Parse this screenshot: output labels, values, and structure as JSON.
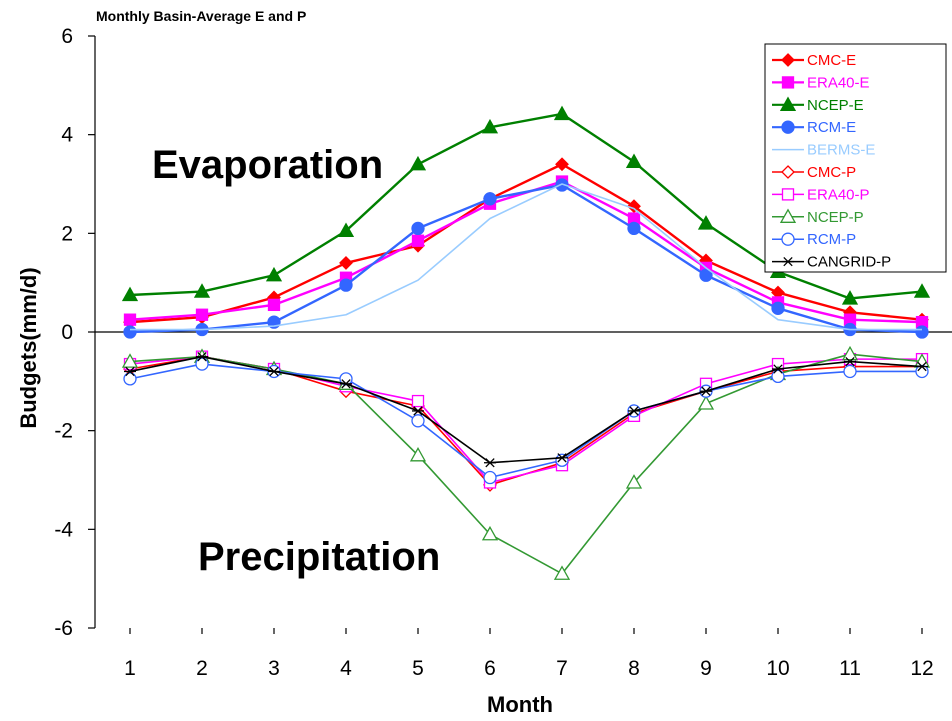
{
  "chart_data": {
    "type": "line",
    "title": "Monthly Basin-Average E and P",
    "xlabel": "Month",
    "ylabel": "Budgets(mm/d)",
    "x": [
      1,
      2,
      3,
      4,
      5,
      6,
      7,
      8,
      9,
      10,
      11,
      12
    ],
    "ylim": [
      -6,
      6
    ],
    "yticks": [
      6,
      4,
      2,
      0,
      -2,
      -4,
      -6
    ],
    "grid": false,
    "legend_position": "top-right",
    "annotations": [
      "Evaporation",
      "Precipitation"
    ],
    "series": [
      {
        "name": "CMC-E",
        "color": "#ff0000",
        "marker": "diamond-filled",
        "values": [
          0.2,
          0.3,
          0.7,
          1.4,
          1.75,
          2.7,
          3.4,
          2.55,
          1.45,
          0.8,
          0.4,
          0.25
        ]
      },
      {
        "name": "ERA40-E",
        "color": "#ff00ff",
        "marker": "square-filled",
        "values": [
          0.25,
          0.35,
          0.55,
          1.1,
          1.85,
          2.6,
          3.05,
          2.3,
          1.3,
          0.6,
          0.25,
          0.2
        ]
      },
      {
        "name": "NCEP-E",
        "color": "#008000",
        "marker": "triangle-filled",
        "values": [
          0.75,
          0.82,
          1.15,
          2.05,
          3.4,
          4.15,
          4.42,
          3.45,
          2.2,
          1.22,
          0.68,
          0.82
        ]
      },
      {
        "name": "RCM-E",
        "color": "#3366ff",
        "marker": "circle-filled",
        "values": [
          0.0,
          0.05,
          0.2,
          0.95,
          2.1,
          2.7,
          2.98,
          2.1,
          1.15,
          0.48,
          0.05,
          0.0
        ]
      },
      {
        "name": "BERMS-E",
        "color": "#99ccff",
        "marker": "none",
        "values": [
          0.05,
          0.05,
          0.12,
          0.35,
          1.05,
          2.3,
          3.0,
          2.5,
          1.3,
          0.25,
          0.05,
          0.05
        ]
      },
      {
        "name": "CMC-P",
        "color": "#ff0000",
        "marker": "diamond-open",
        "values": [
          -0.75,
          -0.5,
          -0.75,
          -1.2,
          -1.5,
          -3.1,
          -2.65,
          -1.65,
          -1.2,
          -0.8,
          -0.7,
          -0.7
        ]
      },
      {
        "name": "ERA40-P",
        "color": "#ff00ff",
        "marker": "square-open",
        "values": [
          -0.65,
          -0.5,
          -0.75,
          -1.1,
          -1.4,
          -3.05,
          -2.7,
          -1.7,
          -1.05,
          -0.65,
          -0.55,
          -0.55
        ]
      },
      {
        "name": "NCEP-P",
        "color": "#339933",
        "marker": "triangle-open",
        "values": [
          -0.6,
          -0.5,
          -0.75,
          -1.05,
          -2.5,
          -4.1,
          -4.9,
          -3.05,
          -1.45,
          -0.85,
          -0.45,
          -0.6
        ]
      },
      {
        "name": "RCM-P",
        "color": "#3366ff",
        "marker": "circle-open",
        "values": [
          -0.95,
          -0.65,
          -0.8,
          -0.95,
          -1.8,
          -2.95,
          -2.6,
          -1.6,
          -1.2,
          -0.9,
          -0.8,
          -0.8
        ]
      },
      {
        "name": "CANGRID-P",
        "color": "#000000",
        "marker": "asterisk",
        "values": [
          -0.8,
          -0.5,
          -0.8,
          -1.05,
          -1.6,
          -2.65,
          -2.55,
          -1.6,
          -1.2,
          -0.75,
          -0.6,
          -0.7
        ]
      }
    ]
  }
}
